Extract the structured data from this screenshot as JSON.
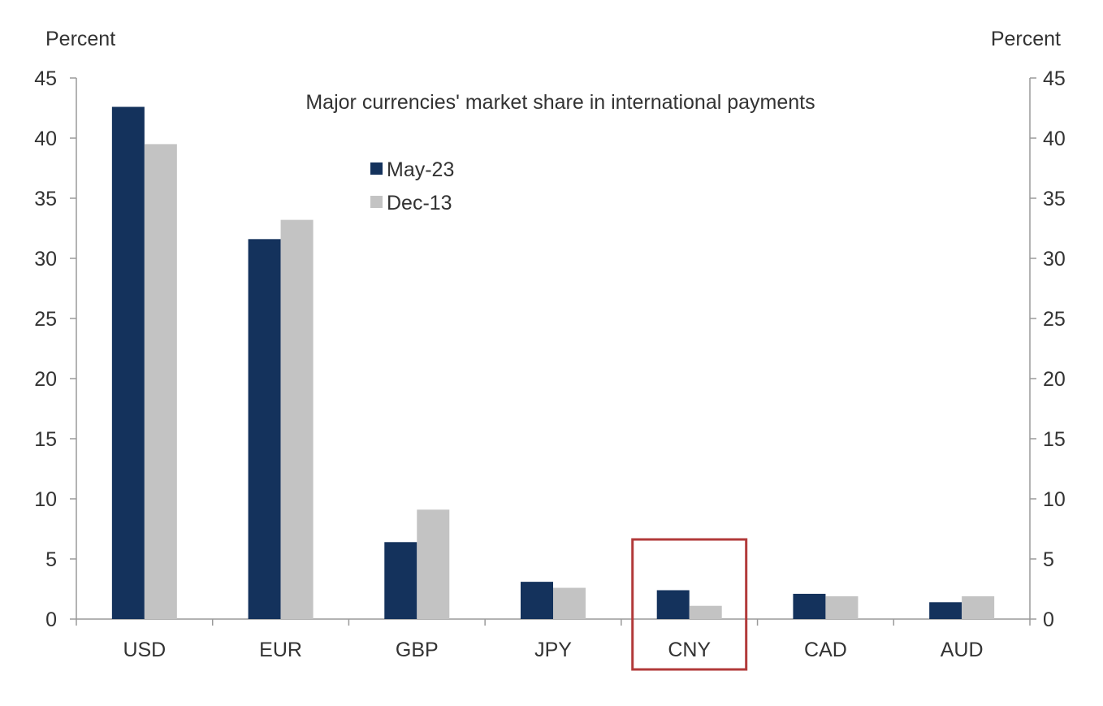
{
  "chart_data": {
    "type": "bar",
    "title": "Major currencies' market share in international payments",
    "ylabel_left": "Percent",
    "ylabel_right": "Percent",
    "ylim": [
      0,
      45
    ],
    "yticks": [
      0,
      5,
      10,
      15,
      20,
      25,
      30,
      35,
      40,
      45
    ],
    "categories": [
      "USD",
      "EUR",
      "GBP",
      "JPY",
      "CNY",
      "CAD",
      "AUD"
    ],
    "series": [
      {
        "name": "May-23",
        "color": "#14325c",
        "values": [
          42.6,
          31.6,
          6.4,
          3.1,
          2.4,
          2.1,
          1.4
        ]
      },
      {
        "name": "Dec-13",
        "color": "#c3c3c3",
        "values": [
          39.5,
          33.2,
          9.1,
          2.6,
          1.1,
          1.9,
          1.9
        ]
      }
    ],
    "legend_position": "top-center",
    "grid": false,
    "highlight": {
      "category": "CNY",
      "color": "#b23a3a"
    }
  }
}
